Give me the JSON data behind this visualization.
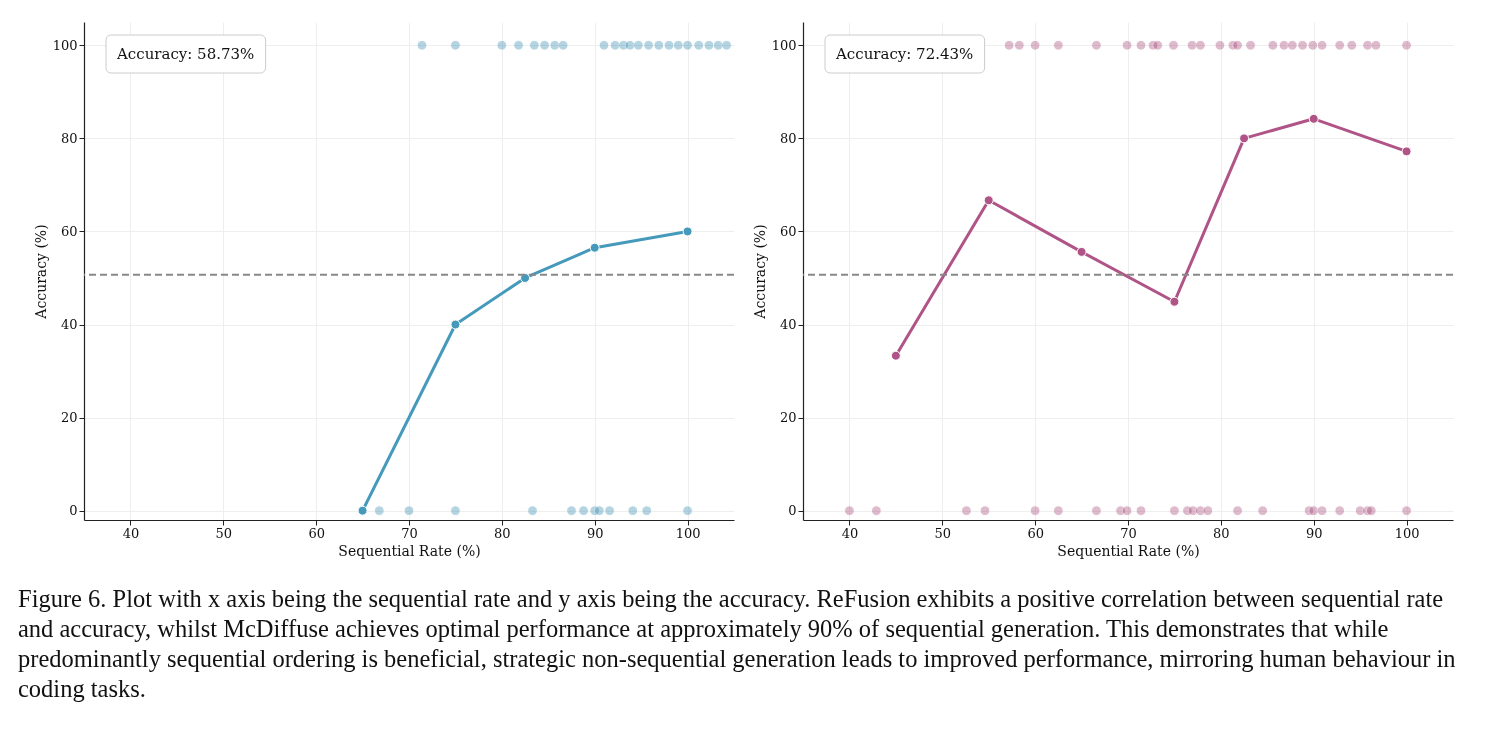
{
  "chart_data": [
    {
      "type": "scatter",
      "xlabel": "Sequential Rate (%)",
      "ylabel": "Accuracy (%)",
      "xlim": [
        35,
        105
      ],
      "ylim": [
        -2,
        105
      ],
      "xticks": [
        40,
        50,
        60,
        70,
        80,
        90,
        100
      ],
      "yticks": [
        0,
        20,
        40,
        60,
        80,
        100
      ],
      "grid": true,
      "marker": "circle",
      "annotations": [
        "Accuracy: 58.73%"
      ],
      "ref_lines": [
        {
          "axis": "y",
          "value": 50.7,
          "color": "#888888",
          "line_style": "dashed"
        }
      ],
      "series": [
        {
          "color": "#2e86ab",
          "x": [
            71.4,
            75.0,
            80.0,
            81.8,
            83.5,
            84.6,
            85.7,
            86.6,
            91.0,
            92.2,
            93.1,
            93.8,
            94.7,
            95.8,
            96.9,
            98.0,
            99.0,
            100,
            101.2,
            102.3,
            103.3,
            104.2,
            65,
            66.8,
            70.0,
            75,
            83.3,
            87.5,
            88.8,
            90,
            90.5,
            91.6,
            94.1,
            95.6,
            100
          ],
          "values": [
            100,
            100,
            100,
            100,
            100,
            100,
            100,
            100,
            100,
            100,
            100,
            100,
            100,
            100,
            100,
            100,
            100,
            100,
            100,
            100,
            100,
            100,
            0,
            0,
            0,
            0,
            0,
            0,
            0,
            0,
            0,
            0,
            0,
            0,
            0
          ]
        },
        {
          "type": "line",
          "color": "#4599bb",
          "x": [
            65,
            75,
            82.5,
            90,
            100
          ],
          "values": [
            0,
            40,
            50,
            56.5,
            60
          ]
        }
      ]
    },
    {
      "type": "scatter",
      "xlabel": "Sequential Rate (%)",
      "ylabel": "Accuracy (%)",
      "xlim": [
        35,
        105
      ],
      "ylim": [
        -2,
        105
      ],
      "xticks": [
        40,
        50,
        60,
        70,
        80,
        90,
        100
      ],
      "yticks": [
        0,
        20,
        40,
        60,
        80,
        100
      ],
      "grid": true,
      "marker": "circle",
      "annotations": [
        "Accuracy: 72.43%",
        "Figure 6. Plot with x axis being the sequential rate and y axis being the accuracy. ReFusion exhibits a positive correlation between sequential rate and accuracy, whilst McDiffuse achieves optimal performance at approximately 90% of sequential generation. This demonstrates that while predominantly sequential ordering is beneficial, strategic non-sequential generation leads to improved performance, mirroring human behaviour in coding tasks."
      ],
      "ref_lines": [
        {
          "axis": "y",
          "value": 50.7,
          "color": "#888888",
          "line_style": "dashed"
        }
      ],
      "series": [
        {
          "color": "#a23b72",
          "x": [
            57.2,
            58.3,
            60.0,
            62.5,
            66.6,
            69.9,
            71.4,
            72.7,
            73.2,
            74.9,
            76.9,
            77.8,
            79.9,
            81.3,
            81.8,
            83.2,
            85.6,
            86.8,
            87.7,
            88.8,
            89.9,
            90.9,
            92.8,
            94.1,
            95.8,
            96.7,
            100,
            40,
            42.9,
            52.6,
            54.6,
            60.0,
            62.5,
            66.6,
            69.2,
            69.9,
            71.4,
            75.0,
            76.4,
            77.0,
            77.8,
            78.6,
            81.8,
            84.5,
            89.5,
            90.0,
            90.9,
            92.8,
            95.0,
            95.8,
            96.2,
            100
          ],
          "values": [
            100,
            100,
            100,
            100,
            100,
            100,
            100,
            100,
            100,
            100,
            100,
            100,
            100,
            100,
            100,
            100,
            100,
            100,
            100,
            100,
            100,
            100,
            100,
            100,
            100,
            100,
            100,
            0,
            0,
            0,
            0,
            0,
            0,
            0,
            0,
            0,
            0,
            0,
            0,
            0,
            0,
            0,
            0,
            0,
            0,
            0,
            0,
            0,
            0,
            0,
            0,
            0
          ]
        },
        {
          "type": "line",
          "color": "#b05487",
          "x": [
            45,
            55,
            65,
            75,
            82.5,
            90,
            100
          ],
          "values": [
            33.3,
            66.7,
            55.6,
            44.9,
            80,
            84.2,
            77.2
          ]
        }
      ]
    }
  ]
}
